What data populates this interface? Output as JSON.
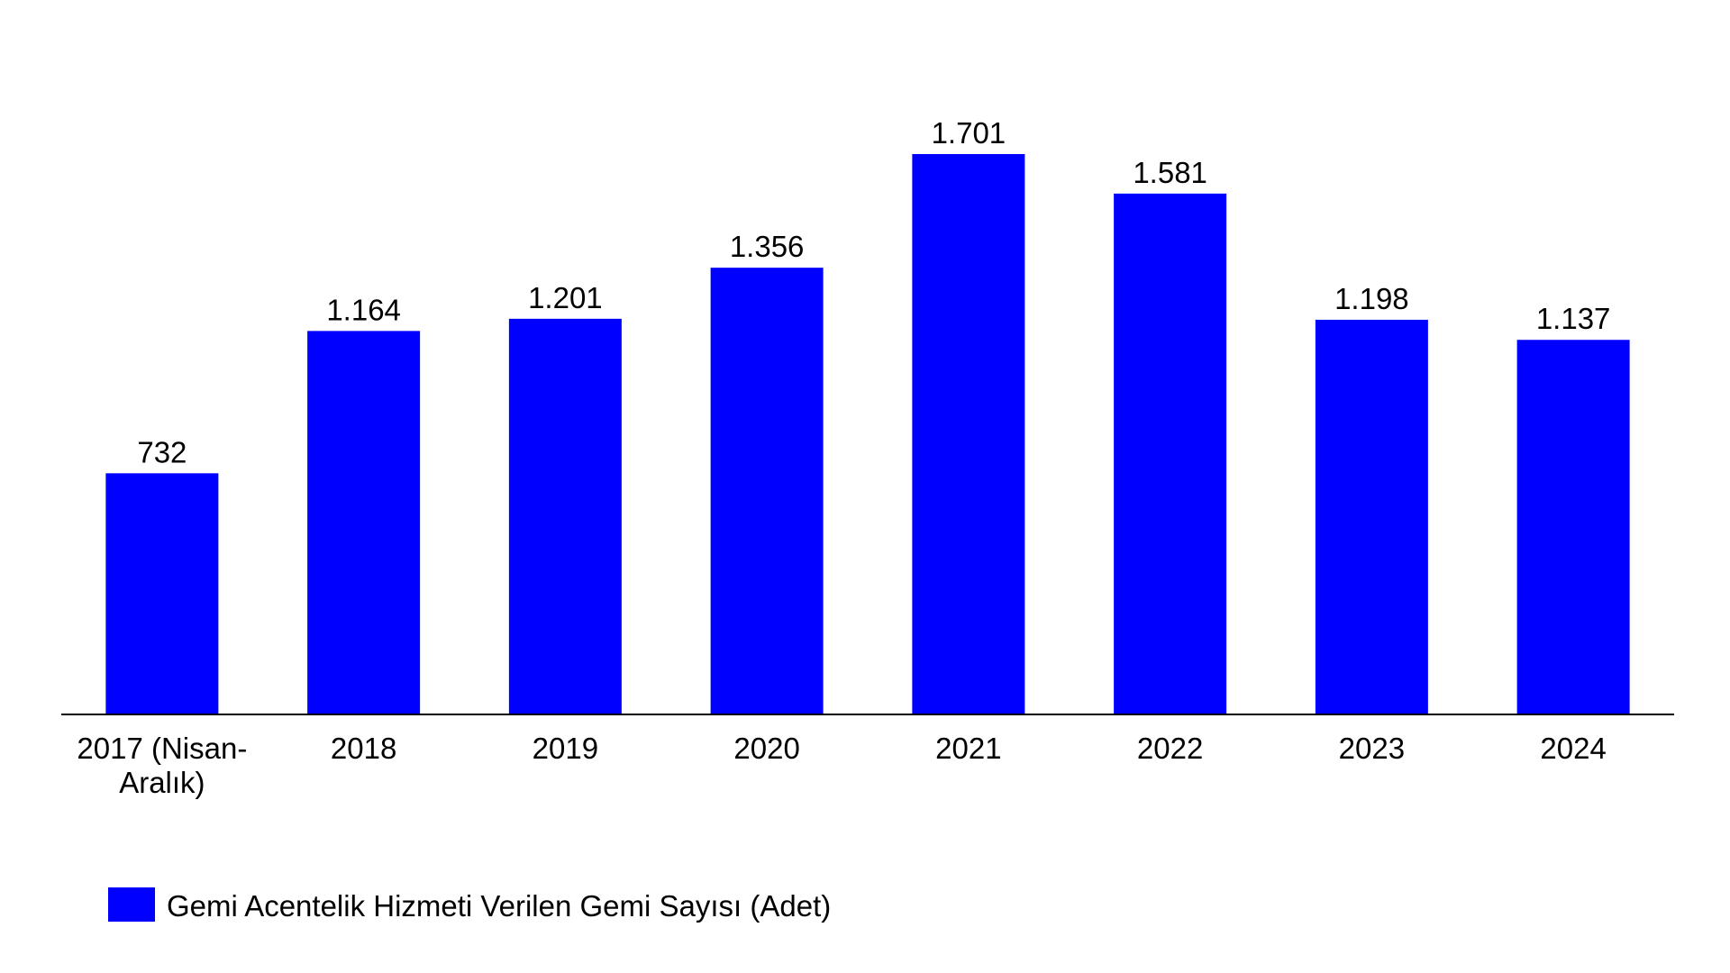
{
  "chart_data": {
    "type": "bar",
    "categories": [
      [
        "2017 (Nisan-",
        "Aralık)"
      ],
      [
        "2018"
      ],
      [
        "2019"
      ],
      [
        "2020"
      ],
      [
        "2021"
      ],
      [
        "2022"
      ],
      [
        "2023"
      ],
      [
        "2024"
      ]
    ],
    "series": [
      {
        "name": "Gemi Acentelik Hizmeti Verilen Gemi Sayısı (Adet)",
        "values": [
          732,
          1164,
          1201,
          1356,
          1701,
          1581,
          1198,
          1137
        ],
        "labels": [
          "732",
          "1.164",
          "1.201",
          "1.356",
          "1.701",
          "1.581",
          "1.198",
          "1.137"
        ],
        "color": "#0000FF"
      }
    ],
    "title": "",
    "xlabel": "",
    "ylabel": "",
    "ylim": [
      0,
      2150
    ],
    "grid": false,
    "legend": "bottom-left",
    "axis_color": "#000000"
  }
}
